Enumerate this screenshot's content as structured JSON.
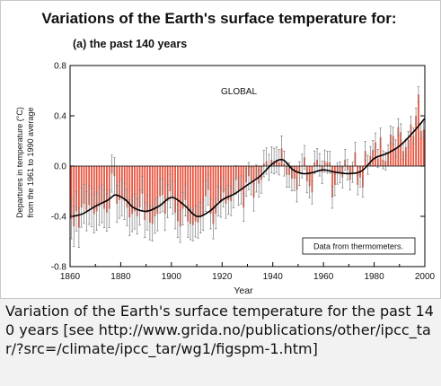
{
  "figure": {
    "title": "Variations of the Earth's surface temperature for:",
    "caption": "Variation of the Earth's surface temperature for the past 140 years [see http://www.grida.no/publications/other/ipcc_tar/?src=/climate/ipcc_tar/wg1/figspm-1.htm]"
  },
  "chart_data": {
    "type": "bar",
    "subtitle": "(a) the past 140 years",
    "region_label": "GLOBAL",
    "legend": "Data from thermometers.",
    "legend_position": "bottom-right",
    "xlabel": "Year",
    "ylabel": [
      "Departures in temperature (°C)",
      "from the 1961 to 1990 average"
    ],
    "xlim": [
      1860,
      2000
    ],
    "ylim": [
      -0.8,
      0.8
    ],
    "x_ticks": [
      "1860",
      "1880",
      "1900",
      "1920",
      "1940",
      "1960",
      "1980",
      "2000"
    ],
    "y_ticks": [
      "0.8",
      "0.4",
      "0.0",
      "-0.4",
      "-0.8"
    ],
    "grid": false,
    "colors": {
      "bars": "#e8523c",
      "smooth_line": "#000000",
      "error_bars": "#7a7a7a",
      "axis": "#000000"
    },
    "x": [
      1861,
      1862,
      1863,
      1864,
      1865,
      1866,
      1867,
      1868,
      1869,
      1870,
      1871,
      1872,
      1873,
      1874,
      1875,
      1876,
      1877,
      1878,
      1879,
      1880,
      1881,
      1882,
      1883,
      1884,
      1885,
      1886,
      1887,
      1888,
      1889,
      1890,
      1891,
      1892,
      1893,
      1894,
      1895,
      1896,
      1897,
      1898,
      1899,
      1900,
      1901,
      1902,
      1903,
      1904,
      1905,
      1906,
      1907,
      1908,
      1909,
      1910,
      1911,
      1912,
      1913,
      1914,
      1915,
      1916,
      1917,
      1918,
      1919,
      1920,
      1921,
      1922,
      1923,
      1924,
      1925,
      1926,
      1927,
      1928,
      1929,
      1930,
      1931,
      1932,
      1933,
      1934,
      1935,
      1936,
      1937,
      1938,
      1939,
      1940,
      1941,
      1942,
      1943,
      1944,
      1945,
      1946,
      1947,
      1948,
      1949,
      1950,
      1951,
      1952,
      1953,
      1954,
      1955,
      1956,
      1957,
      1958,
      1959,
      1960,
      1961,
      1962,
      1963,
      1964,
      1965,
      1966,
      1967,
      1968,
      1969,
      1970,
      1971,
      1972,
      1973,
      1974,
      1975,
      1976,
      1977,
      1978,
      1979,
      1980,
      1981,
      1982,
      1983,
      1984,
      1985,
      1986,
      1987,
      1988,
      1989,
      1990,
      1991,
      1992,
      1993,
      1994,
      1995,
      1996,
      1997,
      1998,
      1999,
      2000
    ],
    "series": [
      {
        "values": [
          -0.42,
          -0.48,
          -0.36,
          -0.49,
          -0.33,
          -0.3,
          -0.36,
          -0.31,
          -0.33,
          -0.38,
          -0.36,
          -0.32,
          -0.3,
          -0.34,
          -0.37,
          -0.34,
          -0.06,
          -0.08,
          -0.3,
          -0.27,
          -0.25,
          -0.28,
          -0.33,
          -0.41,
          -0.38,
          -0.36,
          -0.4,
          -0.33,
          -0.22,
          -0.43,
          -0.37,
          -0.45,
          -0.46,
          -0.4,
          -0.38,
          -0.24,
          -0.23,
          -0.38,
          -0.28,
          -0.2,
          -0.25,
          -0.37,
          -0.44,
          -0.48,
          -0.34,
          -0.27,
          -0.44,
          -0.46,
          -0.47,
          -0.44,
          -0.45,
          -0.41,
          -0.39,
          -0.24,
          -0.19,
          -0.38,
          -0.46,
          -0.38,
          -0.28,
          -0.29,
          -0.21,
          -0.3,
          -0.27,
          -0.28,
          -0.22,
          -0.11,
          -0.2,
          -0.19,
          -0.33,
          -0.13,
          -0.08,
          -0.12,
          -0.25,
          -0.1,
          -0.14,
          -0.11,
          0.02,
          0.04,
          -0.01,
          0.05,
          0.04,
          0.05,
          0.03,
          0.14,
          0.02,
          -0.07,
          -0.07,
          -0.1,
          -0.1,
          -0.19,
          -0.06,
          0.0,
          0.07,
          -0.12,
          -0.16,
          -0.21,
          0.03,
          0.05,
          0.01,
          -0.05,
          0.04,
          0.03,
          0.03,
          -0.25,
          -0.15,
          -0.06,
          -0.05,
          -0.09,
          0.05,
          -0.03,
          -0.11,
          -0.05,
          0.11,
          -0.15,
          -0.09,
          -0.17,
          0.12,
          0.01,
          0.08,
          0.13,
          0.19,
          0.06,
          0.23,
          0.05,
          0.04,
          0.1,
          0.25,
          0.24,
          0.14,
          0.31,
          0.27,
          0.12,
          0.15,
          0.21,
          0.33,
          0.24,
          0.4,
          0.57,
          0.28,
          0.29
        ]
      }
    ],
    "smooth_line": {
      "x": [
        1861,
        1865,
        1870,
        1875,
        1878,
        1882,
        1885,
        1890,
        1895,
        1900,
        1905,
        1910,
        1915,
        1920,
        1925,
        1930,
        1935,
        1940,
        1944,
        1948,
        1952,
        1956,
        1960,
        1965,
        1970,
        1975,
        1980,
        1985,
        1990,
        1995,
        2000
      ],
      "y": [
        -0.4,
        -0.38,
        -0.32,
        -0.27,
        -0.23,
        -0.27,
        -0.33,
        -0.36,
        -0.32,
        -0.25,
        -0.31,
        -0.4,
        -0.36,
        -0.27,
        -0.22,
        -0.15,
        -0.08,
        0.02,
        0.05,
        -0.03,
        -0.06,
        -0.05,
        -0.03,
        -0.05,
        -0.06,
        -0.04,
        0.06,
        0.1,
        0.16,
        0.26,
        0.38
      ]
    }
  }
}
